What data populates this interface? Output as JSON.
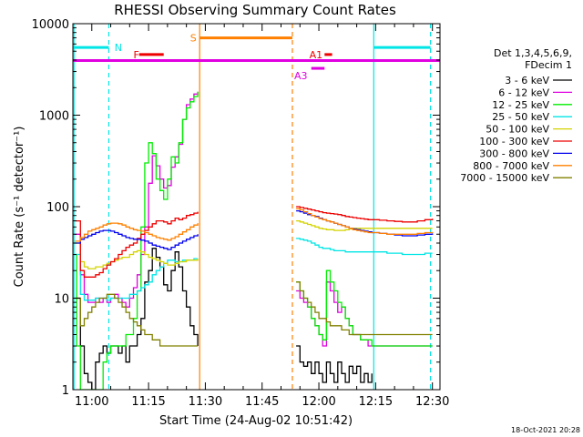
{
  "chart_data": {
    "type": "line",
    "title": "RHESSI Observing Summary Count Rates",
    "xlabel": "Start Time (24-Aug-02 10:51:42)",
    "ylabel": "Count Rate (s⁻¹ detector⁻¹)",
    "x_unit": "minutes after 10:00 UT",
    "xlim": [
      55,
      152
    ],
    "ylim": [
      1,
      10000
    ],
    "yscale": "log",
    "x_ticks": [
      {
        "value": 60,
        "label": "11:00"
      },
      {
        "value": 75,
        "label": "11:15"
      },
      {
        "value": 90,
        "label": "11:30"
      },
      {
        "value": 105,
        "label": "11:45"
      },
      {
        "value": 120,
        "label": "12:00"
      },
      {
        "value": 135,
        "label": "12:15"
      },
      {
        "value": 150,
        "label": "12:30"
      }
    ],
    "y_ticks": [
      {
        "value": 1,
        "label": "1"
      },
      {
        "value": 10,
        "label": "10"
      },
      {
        "value": 100,
        "label": "100"
      },
      {
        "value": 1000,
        "label": "1000"
      },
      {
        "value": 10000,
        "label": "10000"
      }
    ],
    "legend_header": [
      "Det 1,3,4,5,6,9,",
      "FDecim 1"
    ],
    "legend_placement": "right",
    "footer_date": "18-Oct-2021 20:28",
    "flags": [
      {
        "label": "N",
        "color": "#00e5e5",
        "y": 5500,
        "segments": [
          [
            55,
            64.5
          ],
          [
            134.5,
            149.5
          ]
        ],
        "label_x": 66
      },
      {
        "label": "F",
        "color": "#ee0000",
        "y": 4600,
        "segments": [
          [
            72.5,
            79
          ]
        ],
        "label_x": 71
      },
      {
        "label": "S",
        "color": "#ff8000",
        "y": 7000,
        "segments": [
          [
            88.5,
            113
          ]
        ],
        "label_x": 86
      },
      {
        "label": "A1",
        "color": "#ee0000",
        "y": 4600,
        "segments": [
          [
            121.5,
            123.5
          ]
        ],
        "label_x": 117.5
      },
      {
        "label": "A3",
        "color": "#e000e0",
        "y": 3250,
        "segments": [
          [
            118,
            121.5
          ]
        ],
        "label_x": 113.5
      }
    ],
    "attenuator_line": {
      "color": "#e000e0",
      "y": 3950,
      "x": [
        55,
        152
      ]
    },
    "markers": [
      {
        "x": 55.3,
        "color": "#00e5e5",
        "style": "solid"
      },
      {
        "x": 64.5,
        "color": "#00e5e5",
        "style": "dashed"
      },
      {
        "x": 88.5,
        "color": "#ff8000",
        "style": "solid"
      },
      {
        "x": 113,
        "color": "#ff8000",
        "style": "dashed"
      },
      {
        "x": 134.5,
        "color": "#00e5e5",
        "style": "solid"
      },
      {
        "x": 149.5,
        "color": "#00e5e5",
        "style": "dashed"
      }
    ],
    "series": [
      {
        "name": "3 - 6 keV",
        "color": "#000000",
        "x": [
          55.5,
          57,
          58,
          59,
          60,
          61,
          62,
          63,
          64,
          65,
          66,
          67,
          68,
          69,
          70,
          71,
          72,
          73,
          74,
          75,
          76,
          77,
          78,
          79,
          80,
          81,
          82,
          83,
          84,
          85,
          86,
          87,
          88,
          114,
          115,
          116,
          117,
          118,
          119,
          120,
          121,
          122,
          123,
          124,
          125,
          126,
          127,
          128,
          129,
          130,
          131,
          132,
          133,
          134
        ],
        "y": [
          10,
          3,
          1.5,
          1.2,
          1,
          2,
          2.5,
          3,
          2.5,
          3,
          3,
          2.5,
          3,
          2,
          3,
          3,
          4,
          6,
          15,
          20,
          35,
          28,
          22,
          14,
          12,
          20,
          32,
          22,
          12,
          8,
          5,
          4,
          3,
          3,
          2,
          1.8,
          2,
          1.5,
          2,
          1.5,
          1.2,
          2,
          1.5,
          1.2,
          2,
          1.5,
          1.2,
          1.8,
          1.5,
          1.8,
          1.2,
          1.5,
          1.2,
          1.5
        ]
      },
      {
        "name": "6 - 12 keV",
        "color": "#e000e0",
        "x": [
          55.5,
          57,
          58,
          59,
          60,
          61,
          62,
          63,
          64,
          65,
          66,
          67,
          68,
          69,
          70,
          71,
          72,
          73,
          74,
          75,
          76,
          77,
          78,
          79,
          80,
          81,
          82,
          83,
          84,
          85,
          86,
          87,
          88,
          114,
          115,
          116,
          117,
          118,
          119,
          120,
          121,
          122,
          123,
          124,
          125,
          126,
          127,
          128,
          129,
          130,
          131,
          132,
          133,
          134,
          136,
          138,
          140,
          142,
          144,
          146,
          148,
          150
        ],
        "y": [
          50,
          18,
          11,
          9,
          9,
          10,
          9,
          10,
          9,
          10,
          11,
          10,
          9,
          8,
          10,
          13,
          18,
          30,
          60,
          180,
          360,
          280,
          200,
          160,
          170,
          270,
          350,
          480,
          900,
          1300,
          1500,
          1700,
          1800,
          12,
          10,
          9,
          8,
          6,
          5,
          4,
          3,
          15,
          12,
          9,
          7,
          8,
          6,
          5,
          4,
          4,
          3.5,
          3.5,
          3,
          3,
          3,
          3,
          3,
          3,
          3,
          3,
          3,
          3
        ]
      },
      {
        "name": "12 - 25 keV",
        "color": "#00ee00",
        "x": [
          55.5,
          56,
          57,
          58,
          59,
          60,
          61,
          62,
          63,
          64,
          65,
          66,
          67,
          68,
          69,
          70,
          71,
          72,
          73,
          74,
          75,
          76,
          77,
          78,
          79,
          80,
          81,
          82,
          83,
          84,
          85,
          86,
          87,
          88,
          114,
          115,
          116,
          117,
          118,
          119,
          120,
          121,
          122,
          123,
          124,
          125,
          126,
          127,
          128,
          129,
          130,
          131,
          132,
          134,
          136,
          138,
          140,
          142,
          144,
          146,
          148,
          150
        ],
        "y": [
          30,
          3,
          1,
          1,
          1,
          1,
          1,
          1,
          2,
          2.5,
          3,
          3,
          3,
          3,
          4,
          4,
          6,
          12,
          60,
          300,
          500,
          380,
          200,
          150,
          120,
          200,
          350,
          300,
          500,
          900,
          1200,
          1400,
          1600,
          1800,
          15,
          12,
          10,
          8,
          6,
          5,
          4,
          3.5,
          20,
          15,
          12,
          9,
          8,
          6,
          5,
          4,
          4,
          3.5,
          3.5,
          3,
          3,
          3,
          3,
          3,
          3,
          3,
          3,
          3
        ]
      },
      {
        "name": "25 - 50 keV",
        "color": "#00e5e5",
        "x": [
          55.5,
          57,
          58,
          59,
          60,
          61,
          62,
          63,
          64,
          65,
          66,
          67,
          68,
          69,
          70,
          71,
          72,
          73,
          74,
          75,
          76,
          77,
          78,
          79,
          80,
          81,
          82,
          83,
          84,
          85,
          86,
          87,
          88,
          114,
          115,
          116,
          117,
          118,
          119,
          120,
          121,
          122,
          123,
          124,
          125,
          126,
          127,
          128,
          129,
          130,
          131,
          132,
          133,
          134,
          136,
          138,
          140,
          142,
          144,
          146,
          148,
          150
        ],
        "y": [
          30,
          11,
          9.5,
          9.5,
          9.5,
          10,
          10,
          10,
          9.5,
          10,
          10,
          10,
          10,
          10,
          11,
          11,
          12,
          13,
          14,
          15,
          18,
          20,
          22,
          24,
          26,
          26,
          25,
          25,
          26,
          26,
          26,
          27,
          27,
          45,
          44,
          43,
          42,
          40,
          38,
          36,
          35,
          35,
          34,
          33,
          33,
          33,
          32,
          32,
          32,
          32,
          32,
          32,
          32,
          32,
          32,
          31,
          31,
          30,
          30,
          30,
          31,
          31
        ]
      },
      {
        "name": "50 - 100 keV",
        "color": "#d4d400",
        "x": [
          55.5,
          57,
          58,
          59,
          60,
          61,
          62,
          63,
          64,
          65,
          66,
          67,
          68,
          69,
          70,
          71,
          72,
          73,
          74,
          75,
          76,
          77,
          78,
          79,
          80,
          81,
          82,
          83,
          84,
          85,
          86,
          87,
          88,
          114,
          115,
          116,
          117,
          118,
          119,
          120,
          121,
          122,
          123,
          124,
          125,
          126,
          127,
          128,
          129,
          130,
          131,
          132,
          133,
          134,
          136,
          138,
          140,
          142,
          144,
          146,
          148,
          150
        ],
        "y": [
          40,
          25,
          22,
          21,
          21,
          22,
          22,
          23,
          24,
          25,
          26,
          27,
          28,
          28,
          30,
          32,
          33,
          32,
          30,
          28,
          27,
          26,
          25,
          24,
          23,
          23,
          24,
          25,
          25,
          26,
          26,
          26,
          27,
          70,
          68,
          66,
          64,
          62,
          60,
          58,
          57,
          56,
          56,
          55,
          55,
          55,
          56,
          57,
          58,
          58,
          58,
          58,
          58,
          58,
          58,
          58,
          58,
          58,
          58,
          58,
          58,
          58
        ]
      },
      {
        "name": "100 - 300 keV",
        "color": "#ee0000",
        "x": [
          55.5,
          57,
          58,
          59,
          60,
          61,
          62,
          63,
          64,
          65,
          66,
          67,
          68,
          69,
          70,
          71,
          72,
          73,
          74,
          75,
          76,
          77,
          78,
          79,
          80,
          81,
          82,
          83,
          84,
          85,
          86,
          87,
          88,
          114,
          115,
          116,
          117,
          118,
          119,
          120,
          121,
          122,
          123,
          124,
          125,
          126,
          127,
          128,
          129,
          130,
          131,
          132,
          133,
          134,
          136,
          138,
          140,
          142,
          144,
          146,
          148,
          150
        ],
        "y": [
          70,
          20,
          17,
          17,
          17,
          18,
          19,
          21,
          23,
          25,
          27,
          30,
          33,
          36,
          38,
          40,
          45,
          50,
          55,
          60,
          65,
          70,
          70,
          68,
          65,
          70,
          75,
          72,
          75,
          80,
          82,
          85,
          88,
          100,
          98,
          96,
          94,
          92,
          90,
          88,
          86,
          85,
          84,
          83,
          82,
          80,
          78,
          77,
          76,
          75,
          74,
          73,
          72,
          72,
          71,
          70,
          69,
          68,
          68,
          70,
          72,
          74
        ]
      },
      {
        "name": "300 - 800 keV",
        "color": "#0000ee",
        "x": [
          55.5,
          57,
          58,
          59,
          60,
          61,
          62,
          63,
          64,
          65,
          66,
          67,
          68,
          69,
          70,
          71,
          72,
          73,
          74,
          75,
          76,
          77,
          78,
          79,
          80,
          81,
          82,
          83,
          84,
          85,
          86,
          87,
          88,
          114,
          115,
          116,
          117,
          118,
          119,
          120,
          121,
          122,
          123,
          124,
          125,
          126,
          127,
          128,
          129,
          130,
          131,
          132,
          133,
          134,
          136,
          138,
          140,
          142,
          144,
          146,
          148,
          150
        ],
        "y": [
          40,
          44,
          46,
          48,
          50,
          52,
          54,
          55,
          55,
          54,
          52,
          50,
          48,
          46,
          45,
          44,
          44,
          43,
          42,
          40,
          38,
          37,
          36,
          35,
          34,
          36,
          38,
          40,
          42,
          44,
          46,
          48,
          50,
          90,
          88,
          85,
          82,
          80,
          78,
          75,
          72,
          70,
          68,
          66,
          64,
          62,
          60,
          58,
          57,
          56,
          55,
          54,
          53,
          52,
          51,
          50,
          49,
          48,
          48,
          49,
          50,
          51
        ]
      },
      {
        "name": "800 - 7000 keV",
        "color": "#ff8000",
        "x": [
          55.5,
          57,
          58,
          59,
          60,
          61,
          62,
          63,
          64,
          65,
          66,
          67,
          68,
          69,
          70,
          71,
          72,
          73,
          74,
          75,
          76,
          77,
          78,
          79,
          80,
          81,
          82,
          83,
          84,
          85,
          86,
          87,
          88,
          114,
          115,
          116,
          117,
          118,
          119,
          120,
          121,
          122,
          123,
          124,
          125,
          126,
          127,
          128,
          129,
          130,
          131,
          132,
          133,
          134,
          136,
          138,
          140,
          142,
          144,
          146,
          148,
          150
        ],
        "y": [
          42,
          46,
          50,
          54,
          56,
          58,
          60,
          63,
          65,
          66,
          66,
          65,
          63,
          60,
          58,
          56,
          55,
          54,
          52,
          50,
          48,
          46,
          45,
          44,
          43,
          45,
          47,
          50,
          53,
          56,
          60,
          63,
          66,
          95,
          92,
          88,
          84,
          80,
          77,
          74,
          72,
          70,
          68,
          66,
          64,
          62,
          60,
          58,
          56,
          55,
          54,
          53,
          52,
          52,
          51,
          50,
          50,
          50,
          50,
          51,
          52,
          53
        ]
      },
      {
        "name": "7000 - 15000 keV",
        "color": "#808000",
        "x": [
          55.5,
          57,
          58,
          59,
          60,
          61,
          62,
          63,
          64,
          65,
          66,
          67,
          68,
          69,
          70,
          71,
          72,
          73,
          74,
          75,
          76,
          77,
          78,
          79,
          80,
          81,
          82,
          83,
          84,
          85,
          86,
          87,
          88,
          114,
          115,
          116,
          117,
          118,
          119,
          120,
          121,
          122,
          123,
          124,
          125,
          126,
          127,
          128,
          129,
          130,
          131,
          132,
          133,
          134,
          136,
          138,
          140,
          142,
          144,
          146,
          148,
          150
        ],
        "y": [
          10,
          5,
          6,
          7,
          8,
          9,
          10,
          10,
          11,
          11,
          10,
          9,
          8,
          7,
          6,
          5.5,
          5,
          4.5,
          4,
          4,
          3.5,
          3.5,
          3,
          3,
          3,
          3,
          3,
          3,
          3,
          3,
          3,
          3,
          3,
          15,
          12,
          10,
          9,
          8,
          7,
          6,
          6,
          5.5,
          5,
          5,
          5,
          4.5,
          4.5,
          4,
          4,
          4,
          4,
          4,
          4,
          4,
          4,
          4,
          4,
          4,
          4,
          4,
          4,
          4
        ]
      }
    ]
  }
}
